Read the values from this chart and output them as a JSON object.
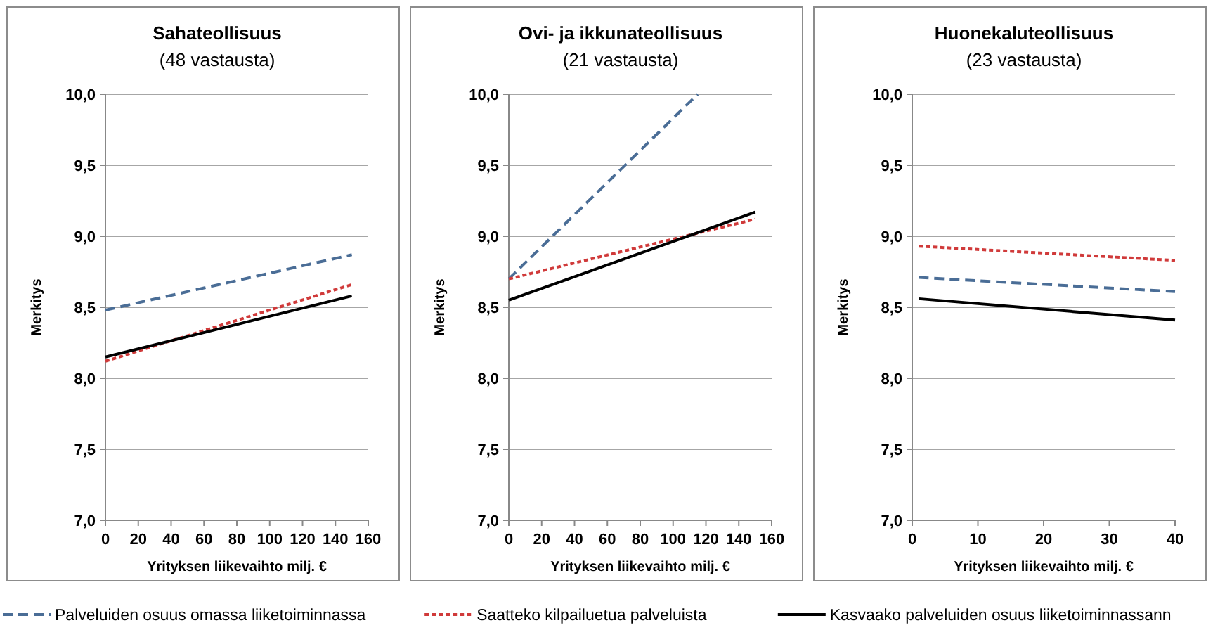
{
  "chart_data": [
    {
      "type": "line",
      "title": "Sahateollisuus",
      "subtitle": "(48 vastausta)",
      "xlabel": "Yrityksen liikevaihto milj. €",
      "ylabel": "Merkitys",
      "xlim": [
        0,
        160
      ],
      "xticks": [
        0,
        20,
        40,
        60,
        80,
        100,
        120,
        140,
        160
      ],
      "ylim": [
        7,
        10
      ],
      "yticks": [
        {
          "value": 7,
          "label": "7,0"
        },
        {
          "value": 7.5,
          "label": "7,5"
        },
        {
          "value": 8,
          "label": "8,0"
        },
        {
          "value": 8.5,
          "label": "8,5"
        },
        {
          "value": 9,
          "label": "9,0"
        },
        {
          "value": 9.5,
          "label": "9,5"
        },
        {
          "value": 10,
          "label": "10,0"
        }
      ],
      "grid": "y",
      "legend": "bottom",
      "marker": "none",
      "series": [
        {
          "name": "Palveluiden osuus omassa liiketoiminnassa",
          "color": "#4a6d96",
          "line_style": "dashed",
          "x": [
            0,
            150
          ],
          "values": [
            8.48,
            8.87
          ]
        },
        {
          "name": "Saatteko kilpailuetua palveluista",
          "color": "#d03a3a",
          "line_style": "dotted",
          "x": [
            0,
            150
          ],
          "values": [
            8.12,
            8.66
          ]
        },
        {
          "name": "Kasvaako palveluiden osuus liiketoiminnassann",
          "color": "#000000",
          "line_style": "solid",
          "x": [
            0,
            150
          ],
          "values": [
            8.15,
            8.58
          ]
        }
      ]
    },
    {
      "type": "line",
      "title": "Ovi- ja ikkunateollisuus",
      "subtitle": "(21 vastausta)",
      "xlabel": "Yrityksen liikevaihto milj. €",
      "ylabel": "Merkitys",
      "xlim": [
        0,
        160
      ],
      "xticks": [
        0,
        20,
        40,
        60,
        80,
        100,
        120,
        140,
        160
      ],
      "ylim": [
        7,
        10
      ],
      "yticks": [
        {
          "value": 7,
          "label": "7,0"
        },
        {
          "value": 7.5,
          "label": "7,5"
        },
        {
          "value": 8,
          "label": "8,0"
        },
        {
          "value": 8.5,
          "label": "8,5"
        },
        {
          "value": 9,
          "label": "9,0"
        },
        {
          "value": 9.5,
          "label": "9,5"
        },
        {
          "value": 10,
          "label": "10,0"
        }
      ],
      "grid": "y",
      "marker": "none",
      "series": [
        {
          "color": "#4a6d96",
          "line_style": "dashed",
          "x": [
            0,
            115
          ],
          "values": [
            8.7,
            10.0
          ]
        },
        {
          "color": "#d03a3a",
          "line_style": "dotted",
          "x": [
            0,
            150
          ],
          "values": [
            8.7,
            9.12
          ]
        },
        {
          "color": "#000000",
          "line_style": "solid",
          "x": [
            0,
            150
          ],
          "values": [
            8.55,
            9.17
          ]
        }
      ]
    },
    {
      "type": "line",
      "title": "Huonekaluteollisuus",
      "subtitle": "(23 vastausta)",
      "xlabel": "Yrityksen liikevaihto milj. €",
      "ylabel": "Merkitys",
      "xlim": [
        0,
        40
      ],
      "xticks": [
        0,
        10,
        20,
        30,
        40
      ],
      "ylim": [
        7,
        10
      ],
      "yticks": [
        {
          "value": 7,
          "label": "7,0"
        },
        {
          "value": 7.5,
          "label": "7,5"
        },
        {
          "value": 8,
          "label": "8,0"
        },
        {
          "value": 8.5,
          "label": "8,5"
        },
        {
          "value": 9,
          "label": "9,0"
        },
        {
          "value": 9.5,
          "label": "9,5"
        },
        {
          "value": 10,
          "label": "10,0"
        }
      ],
      "grid": "y",
      "marker": "none",
      "series": [
        {
          "color": "#4a6d96",
          "line_style": "dashed",
          "x": [
            1,
            40
          ],
          "values": [
            8.71,
            8.61
          ]
        },
        {
          "color": "#d03a3a",
          "line_style": "dotted",
          "x": [
            1,
            40
          ],
          "values": [
            8.93,
            8.83
          ]
        },
        {
          "color": "#000000",
          "line_style": "solid",
          "x": [
            1,
            40
          ],
          "values": [
            8.56,
            8.41
          ]
        }
      ]
    }
  ]
}
